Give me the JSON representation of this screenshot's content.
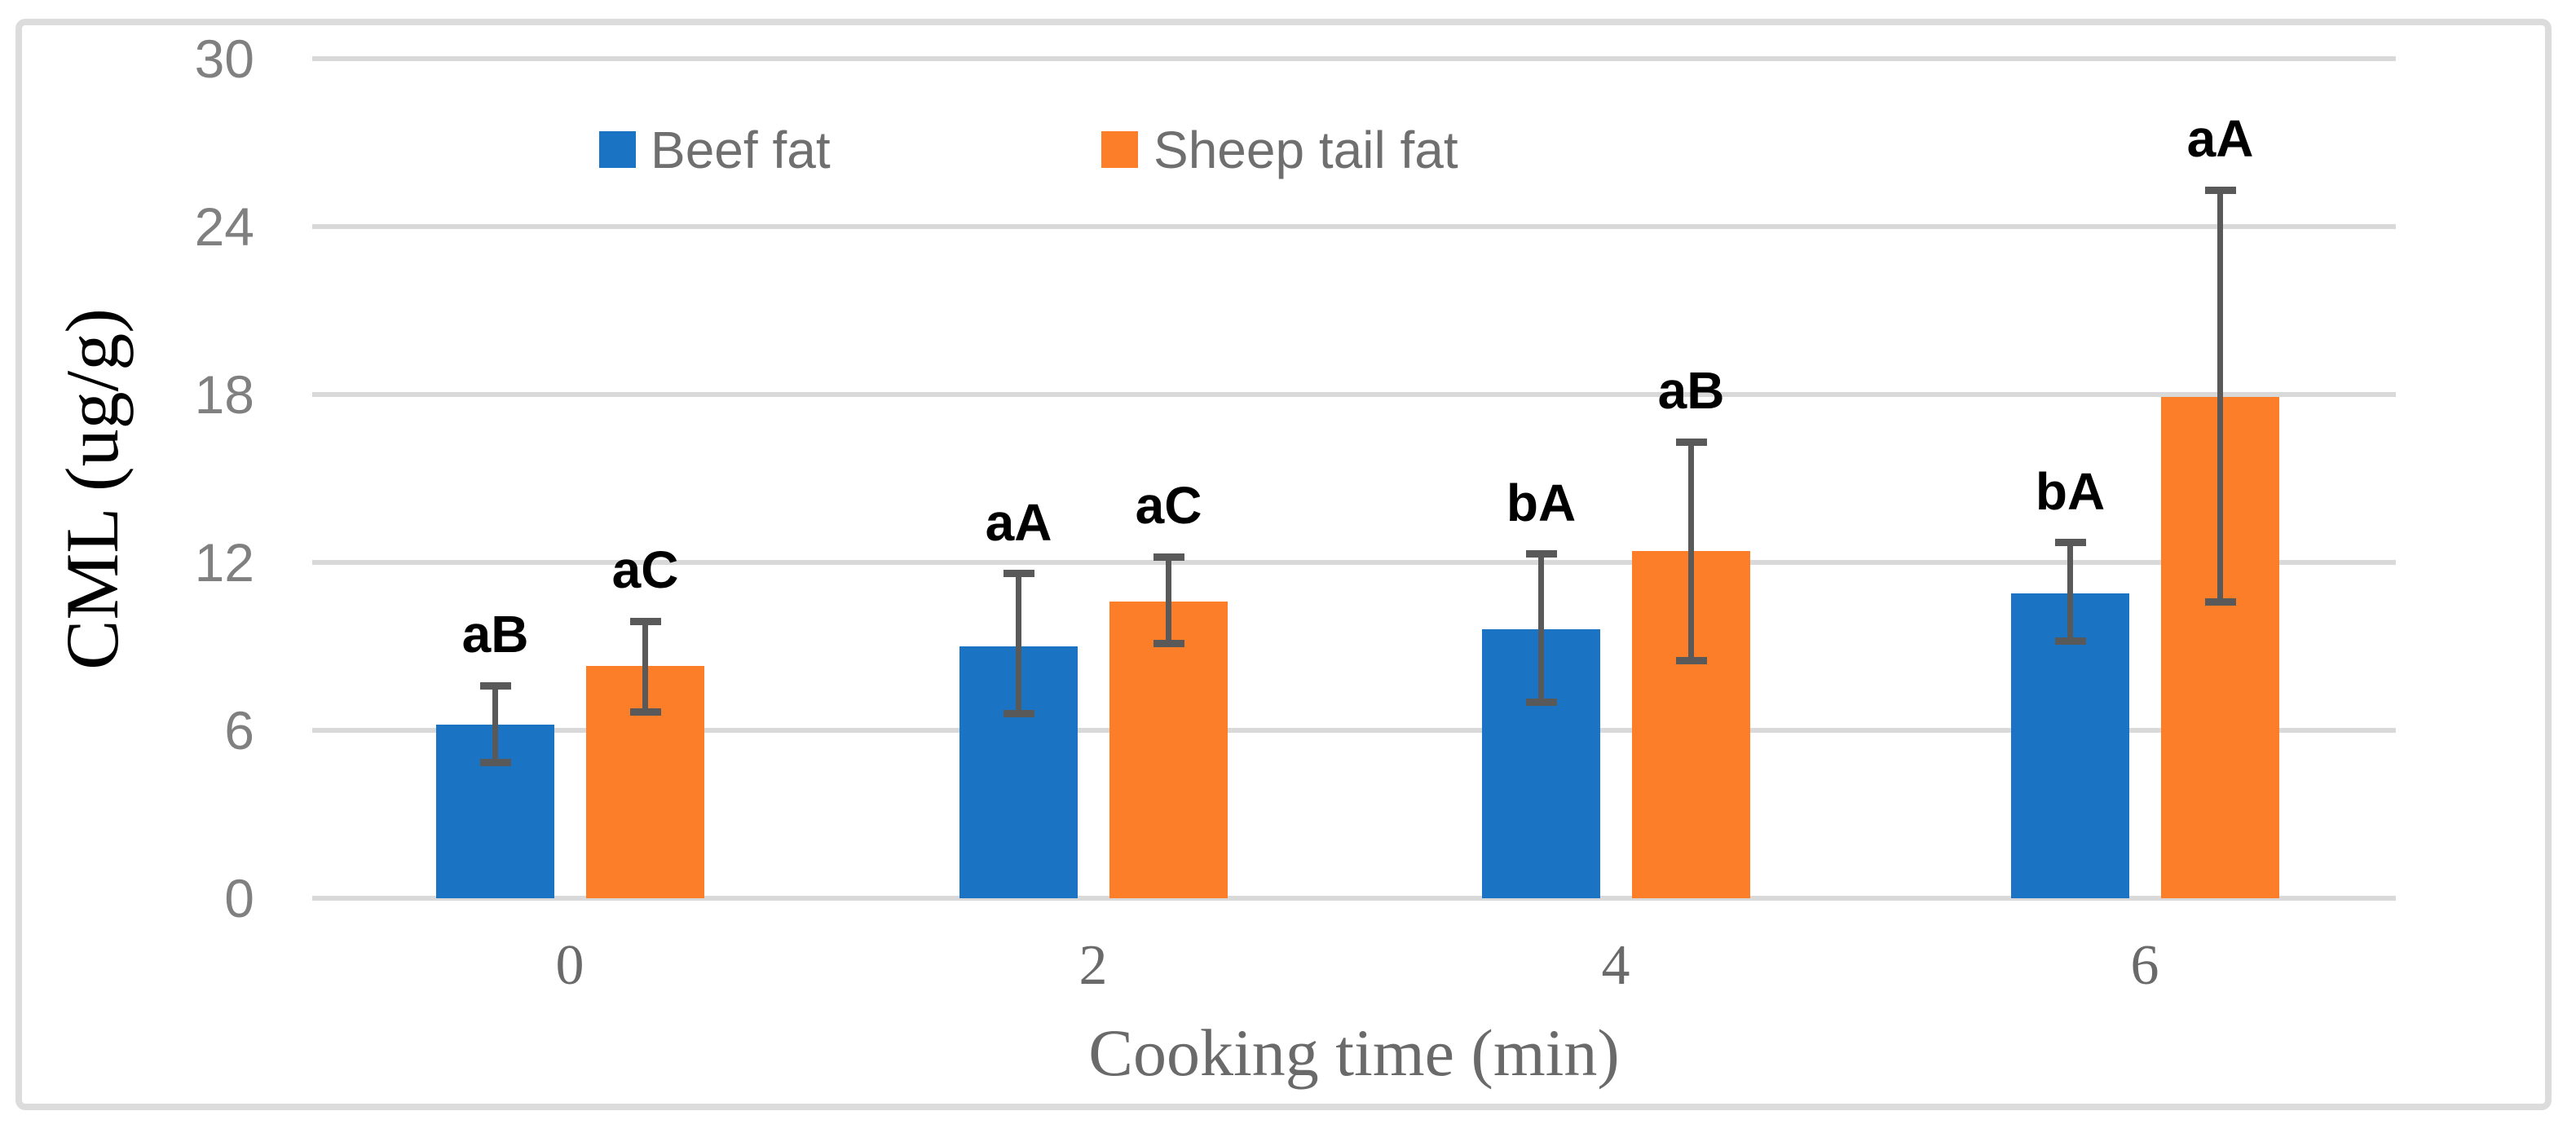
{
  "chart_data": {
    "type": "bar",
    "title": "",
    "xlabel": "Cooking time (min)",
    "ylabel": "CML (ug/g)",
    "categories": [
      "0",
      "2",
      "4",
      "6"
    ],
    "y_ticks": [
      0,
      6,
      12,
      18,
      24,
      30
    ],
    "ylim": [
      0,
      30
    ],
    "grid": "horizontal-only",
    "legend_position": "top-inside",
    "series": [
      {
        "name": "Beef fat",
        "color": "#1b73c4",
        "values": [
          6.2,
          9.0,
          9.6,
          10.9
        ],
        "error_low": [
          4.85,
          6.6,
          7.0,
          9.2
        ],
        "error_high": [
          7.6,
          11.6,
          12.3,
          12.7
        ],
        "sig_labels": [
          "aB",
          "aA",
          "bA",
          "bA"
        ]
      },
      {
        "name": "Sheep tail fat",
        "color": "#fc7e28",
        "values": [
          8.3,
          10.6,
          12.4,
          17.9
        ],
        "error_low": [
          6.65,
          9.1,
          8.5,
          10.6
        ],
        "error_high": [
          9.9,
          12.2,
          16.3,
          25.3
        ],
        "sig_labels": [
          "aC",
          "aC",
          "aB",
          "aA"
        ]
      }
    ],
    "error_bar_color": "#595959",
    "gridline_color": "#d9d9d9",
    "y_tick_color": "#808080",
    "x_tick_color": "#6a6a6a",
    "sig_label_color": "#000000"
  }
}
